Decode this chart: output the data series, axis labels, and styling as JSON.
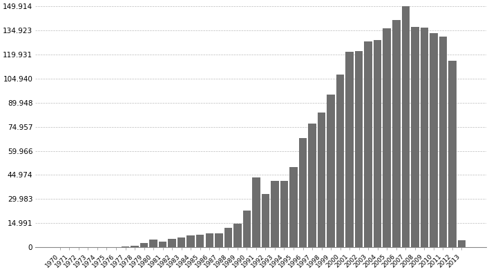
{
  "years": [
    1970,
    1971,
    1972,
    1973,
    1974,
    1975,
    1976,
    1977,
    1978,
    1979,
    1980,
    1981,
    1982,
    1983,
    1984,
    1985,
    1986,
    1987,
    1988,
    1989,
    1990,
    1991,
    1992,
    1993,
    1994,
    1995,
    1996,
    1997,
    1998,
    1999,
    2000,
    2001,
    2002,
    2003,
    2004,
    2005,
    2006,
    2007,
    2008,
    2009,
    2010,
    2011,
    2012,
    2013
  ],
  "values": [
    0.05,
    0.05,
    0.05,
    0.05,
    0.05,
    0.1,
    0.2,
    0.3,
    1.0,
    2.5,
    5.0,
    3.5,
    5.2,
    6.0,
    7.5,
    8.0,
    8.5,
    8.8,
    12.0,
    14.5,
    23.0,
    43.5,
    33.0,
    41.5,
    41.5,
    50.0,
    68.0,
    77.0,
    84.0,
    95.0,
    107.5,
    121.5,
    122.0,
    128.0,
    129.0,
    136.0,
    141.5,
    149.8,
    137.0,
    136.5,
    133.0,
    131.0,
    116.0,
    4.5
  ],
  "bar_color": "#6e6e6e",
  "background_color": "#ffffff",
  "grid_color": "#bbbbbb",
  "ytick_labels": [
    "0",
    "14.991",
    "29.983",
    "44.974",
    "59.966",
    "74.957",
    "89.948",
    "104.940",
    "119.931",
    "134.923",
    "149.914"
  ],
  "ytick_values": [
    0,
    14.991,
    29.983,
    44.974,
    59.966,
    74.957,
    89.948,
    104.94,
    119.931,
    134.923,
    149.914
  ],
  "ylim": [
    0,
    152
  ],
  "bar_width": 0.85,
  "xlabel_rotation": 45,
  "xlabel_fontsize": 6.5,
  "ylabel_fontsize": 7.5,
  "grid_linestyle": "--",
  "grid_linewidth": 0.5
}
